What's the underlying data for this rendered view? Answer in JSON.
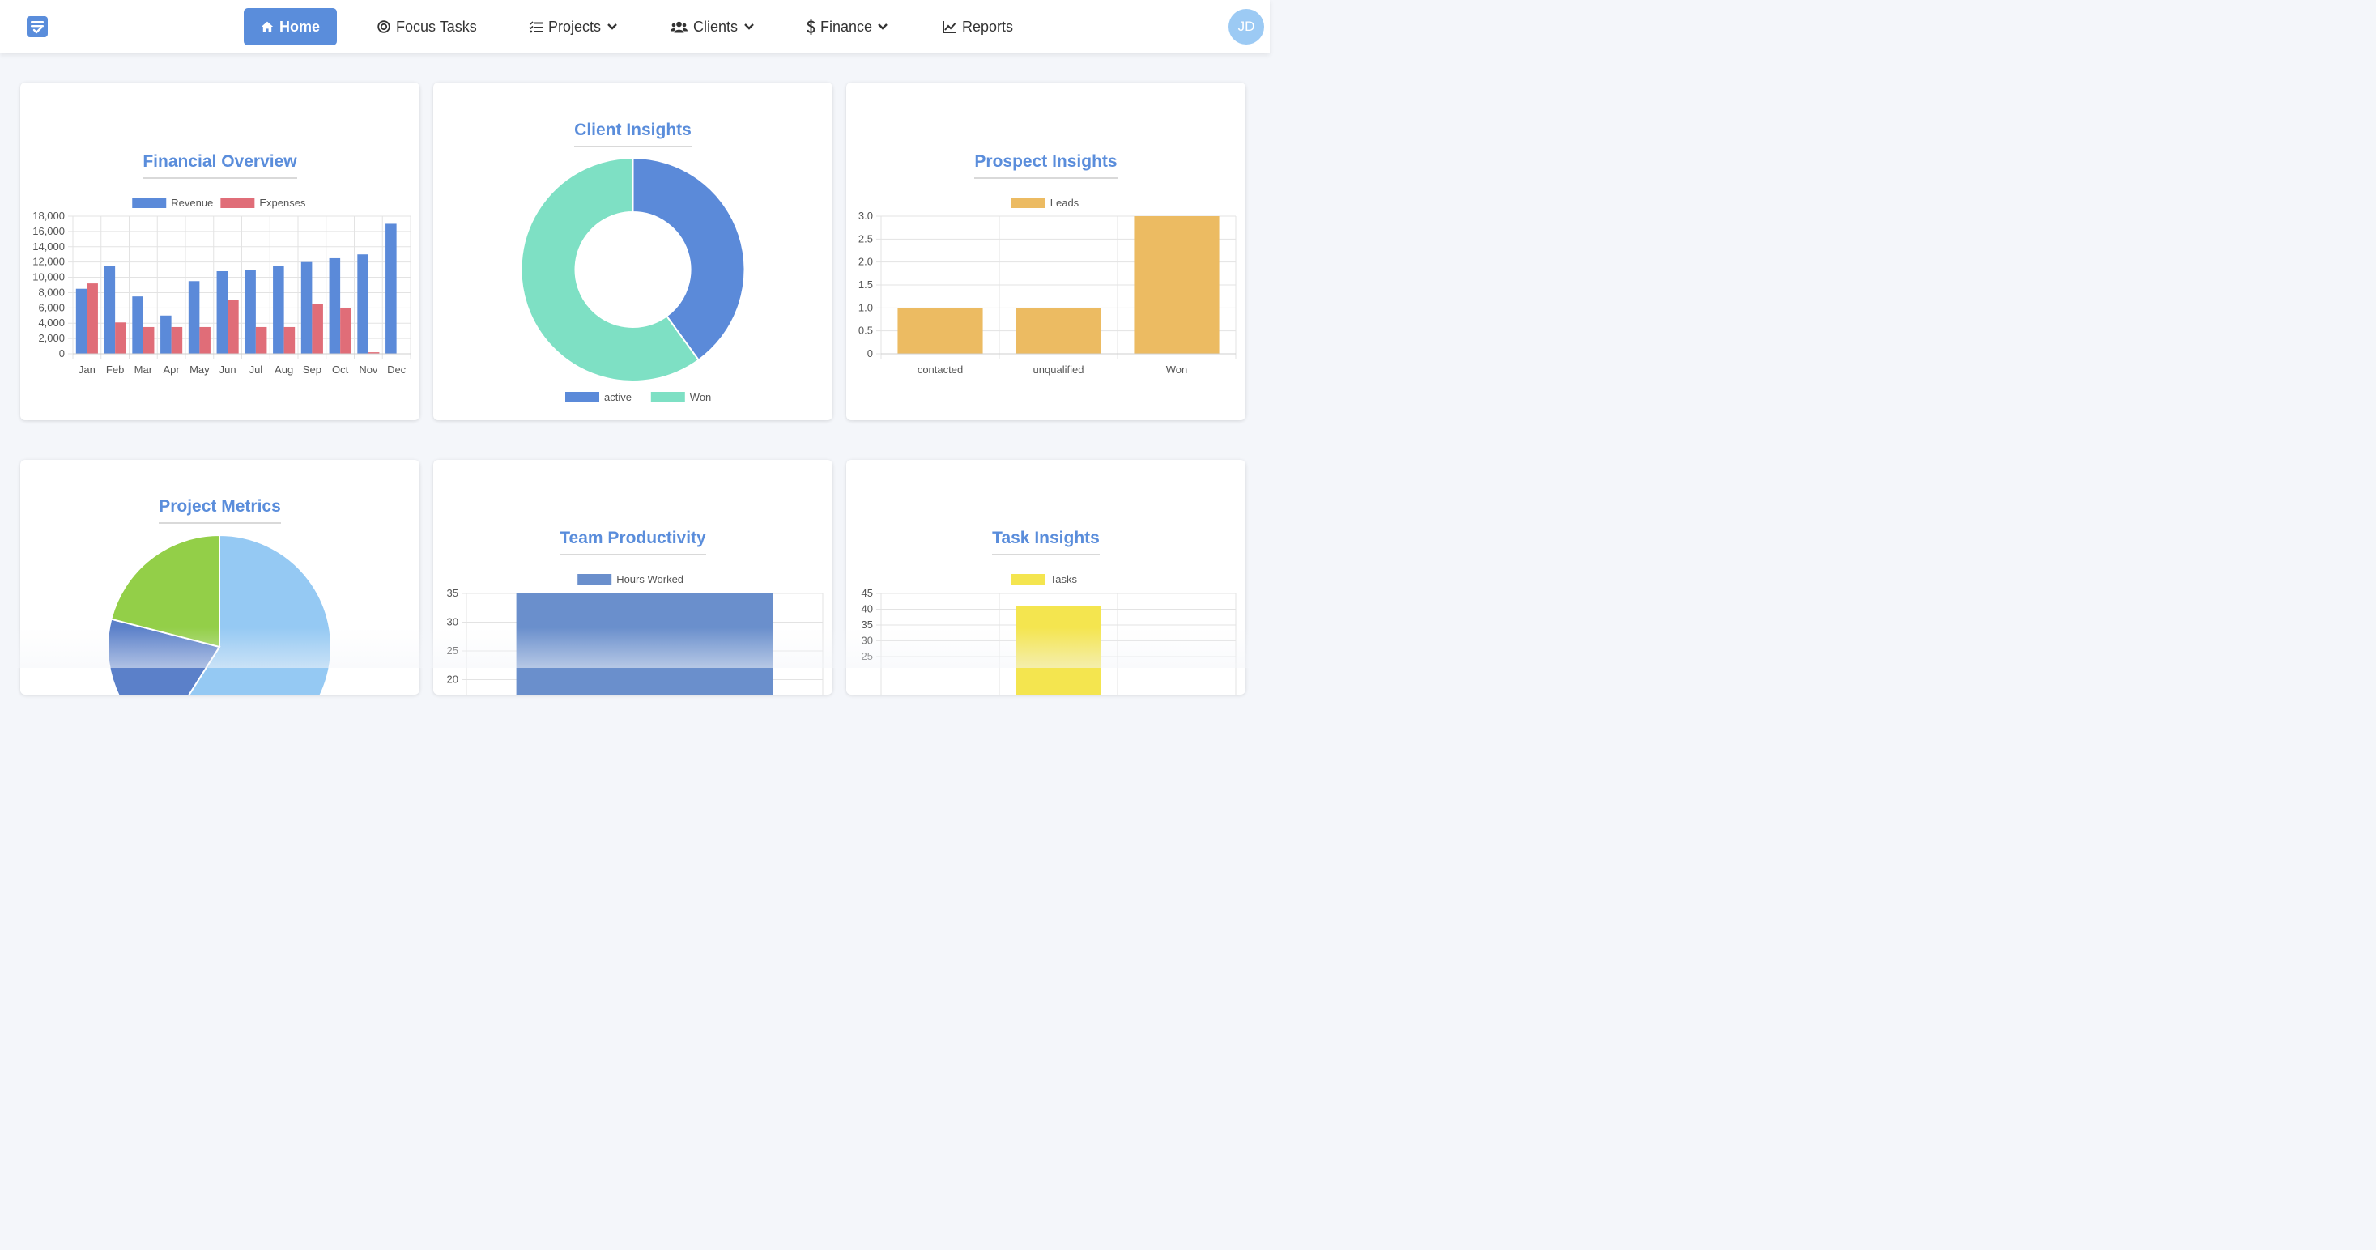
{
  "nav": {
    "items": [
      {
        "label": "Home",
        "icon": "home-icon",
        "active": true
      },
      {
        "label": "Focus Tasks",
        "icon": "target-icon"
      },
      {
        "label": "Projects",
        "icon": "list-check-icon",
        "dropdown": true
      },
      {
        "label": "Clients",
        "icon": "users-icon",
        "dropdown": true
      },
      {
        "label": "Finance",
        "icon": "dollar-icon",
        "dropdown": true
      },
      {
        "label": "Reports",
        "icon": "line-chart-icon"
      }
    ],
    "avatar_initials": "JD"
  },
  "colors": {
    "accent": "#5a8ddb",
    "revenue": "#5b8ad9",
    "expenses": "#e06d78",
    "active": "#5b8ad9",
    "won": "#7ee0c4",
    "leads": "#ecbb62",
    "project_light_blue": "#95c9f3",
    "project_blue": "#5b80c9",
    "project_green": "#93cf48",
    "hours": "#6a8fcc",
    "tasks": "#f4e54f"
  },
  "cards": {
    "financial": {
      "title": "Financial Overview"
    },
    "client": {
      "title": "Client Insights"
    },
    "prospect": {
      "title": "Prospect Insights"
    },
    "project": {
      "title": "Project Metrics"
    },
    "team": {
      "title": "Team Productivity"
    },
    "task": {
      "title": "Task Insights"
    }
  },
  "chart_data": [
    {
      "id": "financial",
      "type": "bar",
      "title": "Financial Overview",
      "categories": [
        "Jan",
        "Feb",
        "Mar",
        "Apr",
        "May",
        "Jun",
        "Jul",
        "Aug",
        "Sep",
        "Oct",
        "Nov",
        "Dec"
      ],
      "series": [
        {
          "name": "Revenue",
          "values": [
            8500,
            11500,
            7500,
            5000,
            9500,
            10800,
            11000,
            11500,
            12000,
            12500,
            13000,
            17000
          ]
        },
        {
          "name": "Expenses",
          "values": [
            9200,
            4100,
            3500,
            3500,
            3500,
            7000,
            3500,
            3500,
            6500,
            6000,
            200,
            0
          ]
        }
      ],
      "ylim": [
        0,
        18000
      ],
      "yticks": [
        "18,000",
        "16,000",
        "14,000",
        "12,000",
        "10,000",
        "8,000",
        "6,000",
        "4,000",
        "2,000",
        "0"
      ],
      "legend": "top"
    },
    {
      "id": "client",
      "type": "pie",
      "donut": true,
      "title": "Client Insights",
      "labels": [
        "active",
        "Won"
      ],
      "values": [
        40,
        60
      ],
      "legend": "bottom"
    },
    {
      "id": "prospect",
      "type": "bar",
      "title": "Prospect Insights",
      "categories": [
        "contacted",
        "unqualified",
        "Won"
      ],
      "series": [
        {
          "name": "Leads",
          "values": [
            1,
            1,
            3
          ]
        }
      ],
      "ylim": [
        0,
        3
      ],
      "yticks": [
        "3.0",
        "2.5",
        "2.0",
        "1.5",
        "1.0",
        "0.5",
        "0"
      ],
      "legend": "top"
    },
    {
      "id": "project",
      "type": "pie",
      "title": "Project Metrics",
      "values": [
        59,
        20,
        21
      ]
    },
    {
      "id": "team",
      "type": "bar",
      "title": "Team Productivity",
      "series": [
        {
          "name": "Hours Worked",
          "values": [
            35
          ]
        }
      ],
      "ylim": [
        0,
        35
      ],
      "yticks": [
        "35",
        "30",
        "25",
        "20"
      ],
      "legend": "top"
    },
    {
      "id": "task",
      "type": "bar",
      "title": "Task Insights",
      "series": [
        {
          "name": "Tasks",
          "values": [
            41
          ]
        }
      ],
      "ylim": [
        0,
        45
      ],
      "yticks": [
        "45",
        "40",
        "35",
        "30",
        "25"
      ],
      "legend": "top"
    }
  ]
}
